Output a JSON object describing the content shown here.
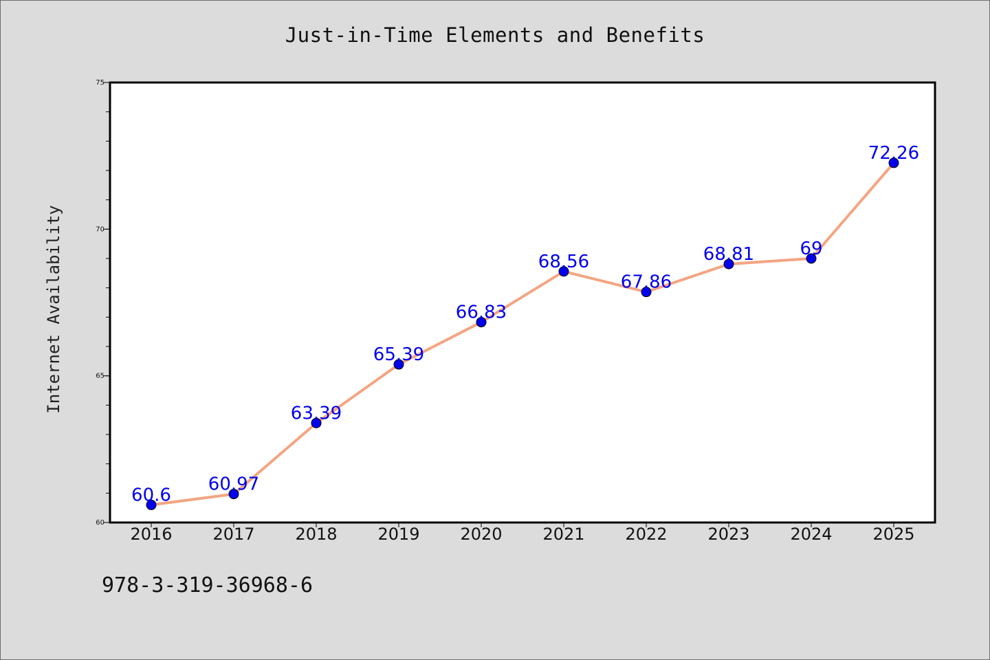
{
  "header": {
    "title": "Just-in-Time Elements and Benefits"
  },
  "footer": {
    "isbn": "978-3-319-36968-6"
  },
  "colors": {
    "background": "#dcdcdc",
    "line": "#f4a582",
    "marker": "#0000ee",
    "data_label": "#0000ee"
  },
  "chart_data": {
    "type": "line",
    "title": "Just-in-Time Elements and Benefits",
    "xlabel": "",
    "ylabel": "Internet Availability",
    "categories": [
      "2016",
      "2017",
      "2018",
      "2019",
      "2020",
      "2021",
      "2022",
      "2023",
      "2024",
      "2025"
    ],
    "values": [
      60.6,
      60.97,
      63.39,
      65.39,
      66.83,
      68.56,
      67.86,
      68.81,
      69,
      72.26
    ],
    "data_labels": [
      "60.6",
      "60.97",
      "63.39",
      "65.39",
      "66.83",
      "68.56",
      "67.86",
      "68.81",
      "69",
      "72.26"
    ],
    "ylim": [
      60,
      75
    ],
    "yticks": [
      60,
      65,
      70,
      75
    ],
    "grid": false,
    "legend": "none"
  }
}
